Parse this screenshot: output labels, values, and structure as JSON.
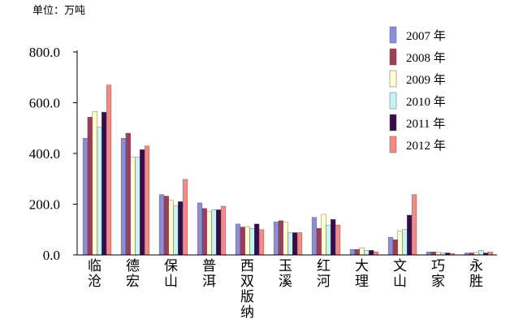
{
  "chart_data": {
    "type": "bar",
    "unit_label": "单位：万吨",
    "categories": [
      "临沧",
      "德宏",
      "保山",
      "普洱",
      "西双版纳",
      "玉溪",
      "红河",
      "大理",
      "文山",
      "巧家",
      "永胜"
    ],
    "yticks": [
      "800.0",
      "600.0",
      "400.0",
      "200.0",
      "0.0"
    ],
    "ylim": [
      0,
      800
    ],
    "series": [
      {
        "name": "2007 年",
        "color": "#8c8ed8",
        "values": [
          460,
          460,
          238,
          205,
          122,
          130,
          148,
          22,
          70,
          12,
          8
        ]
      },
      {
        "name": "2008 年",
        "color": "#9e3d56",
        "values": [
          543,
          480,
          232,
          183,
          110,
          135,
          105,
          22,
          60,
          12,
          8
        ]
      },
      {
        "name": "2009 年",
        "color": "#ffffd0",
        "values": [
          565,
          385,
          215,
          170,
          112,
          130,
          160,
          28,
          95,
          10,
          10
        ]
      },
      {
        "name": "2010 年",
        "color": "#c7f3f7",
        "values": [
          503,
          385,
          193,
          178,
          105,
          88,
          118,
          18,
          100,
          8,
          18
        ]
      },
      {
        "name": "2011 年",
        "color": "#3b0a4a",
        "values": [
          563,
          415,
          210,
          178,
          122,
          88,
          140,
          18,
          157,
          8,
          8
        ]
      },
      {
        "name": "2012 年",
        "color": "#f58a82",
        "values": [
          670,
          430,
          298,
          192,
          100,
          88,
          118,
          12,
          238,
          6,
          12
        ]
      }
    ]
  }
}
